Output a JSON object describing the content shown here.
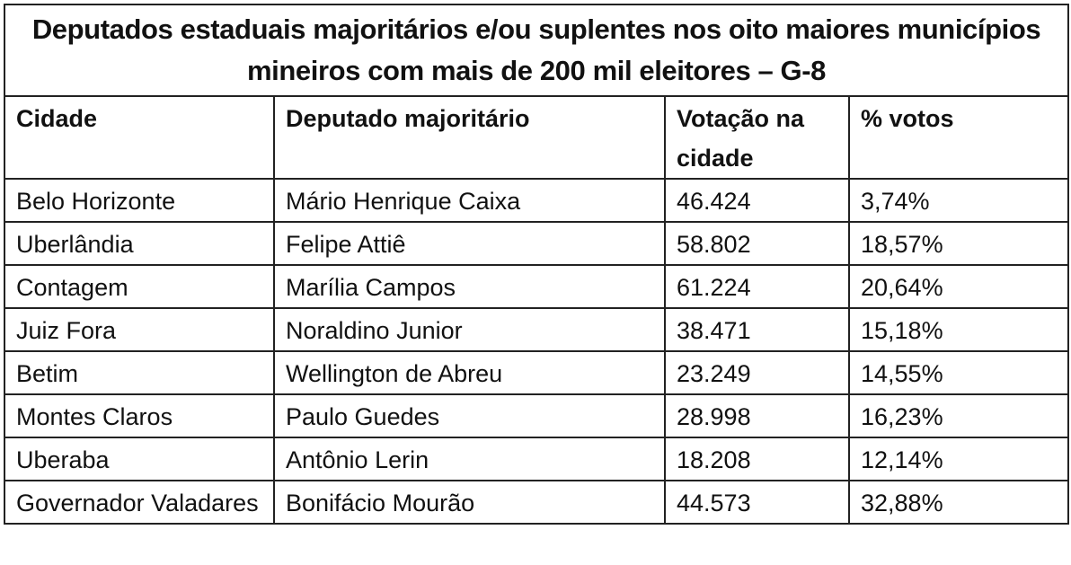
{
  "table": {
    "title": "Deputados estaduais majoritários e/ou suplentes nos oito maiores municípios mineiros com mais de 200 mil eleitores – G-8",
    "headers": [
      "Cidade",
      "Deputado majoritário",
      "Votação na cidade",
      "% votos"
    ],
    "rows": [
      [
        "Belo Horizonte",
        "Mário Henrique Caixa",
        "46.424",
        "3,74%"
      ],
      [
        "Uberlândia",
        "Felipe Attiê",
        "58.802",
        "18,57%"
      ],
      [
        "Contagem",
        "Marília Campos",
        "61.224",
        "20,64%"
      ],
      [
        "Juiz Fora",
        "Noraldino Junior",
        "38.471",
        "15,18%"
      ],
      [
        "Betim",
        "Wellington de Abreu",
        "23.249",
        "14,55%"
      ],
      [
        "Montes Claros",
        "Paulo Guedes",
        "28.998",
        "16,23%"
      ],
      [
        "Uberaba",
        "Antônio Lerin",
        "18.208",
        "12,14%"
      ],
      [
        "Governador Valadares",
        "Bonifácio Mourão",
        "44.573",
        "32,88%"
      ]
    ]
  }
}
